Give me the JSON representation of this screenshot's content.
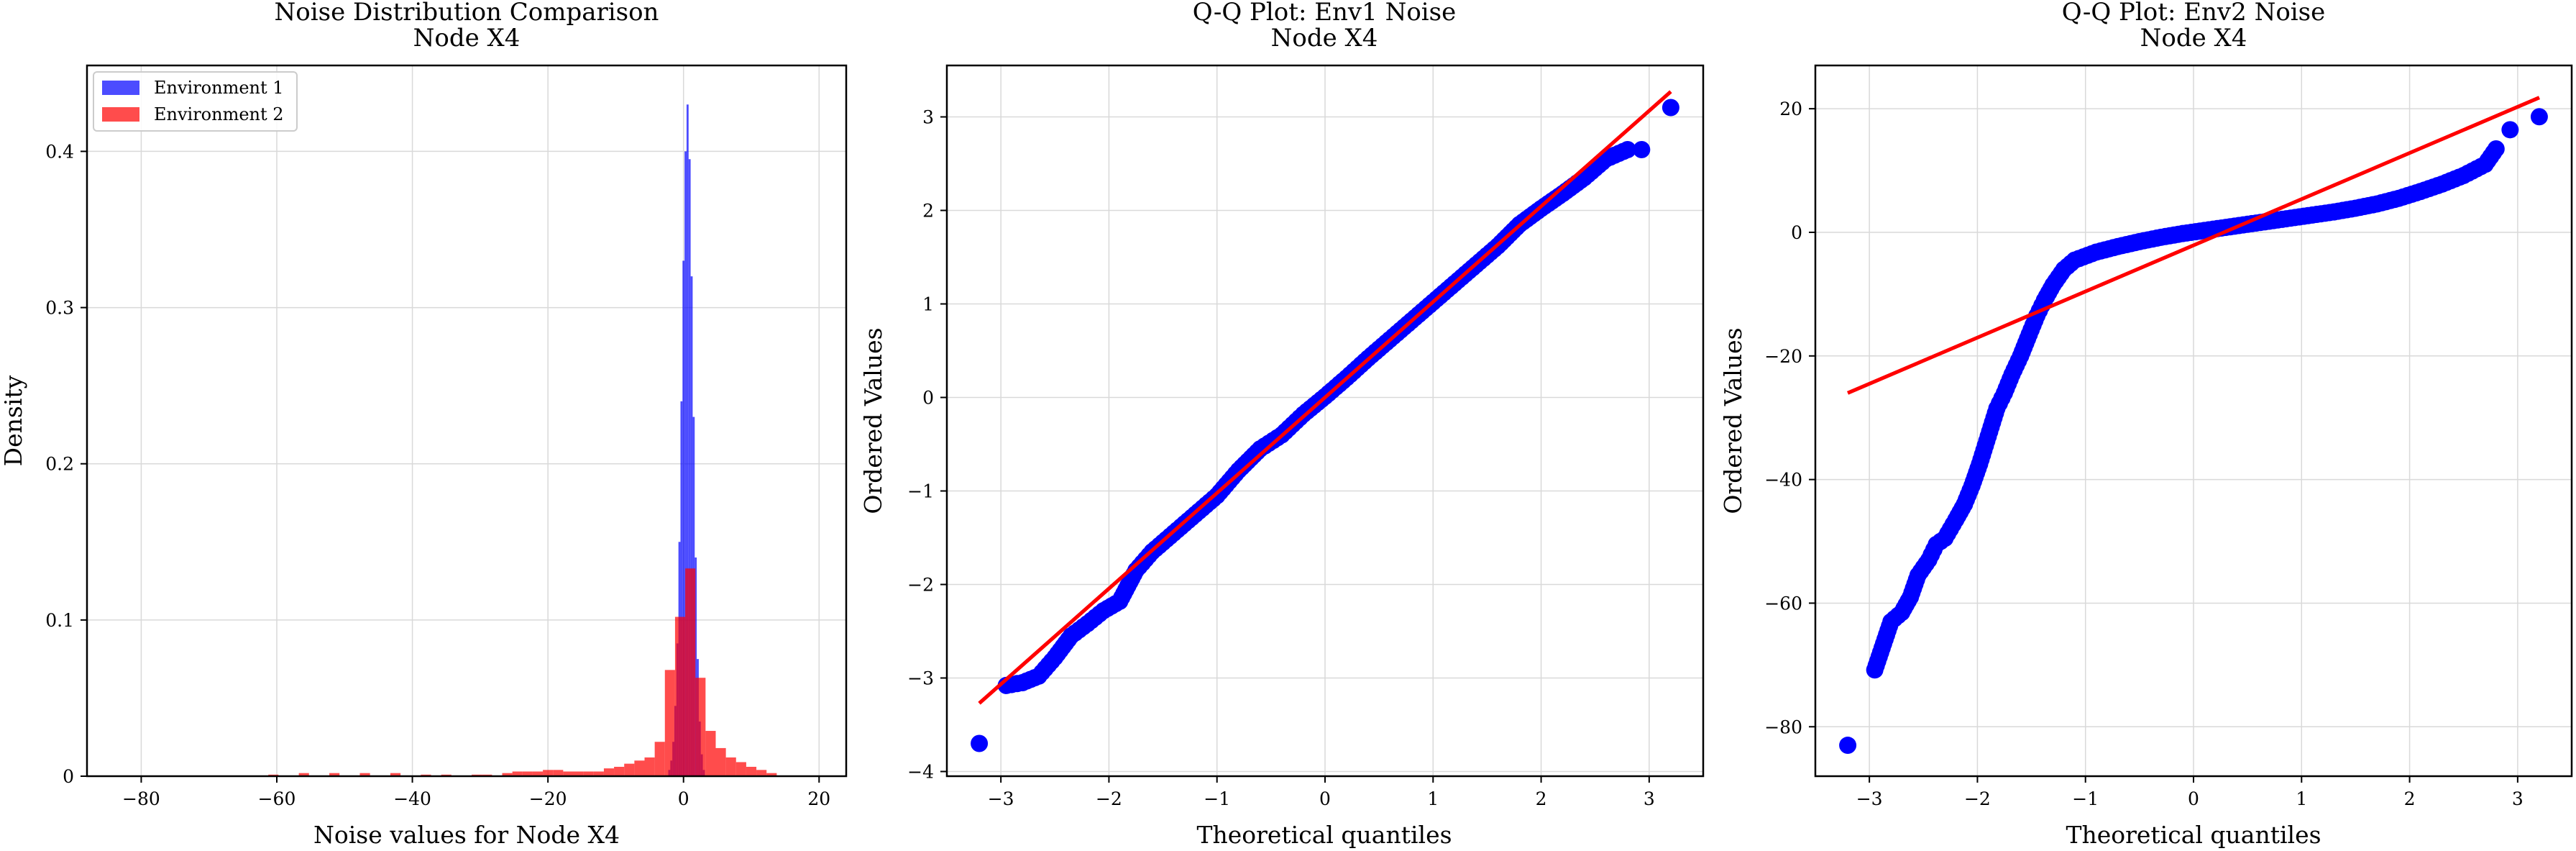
{
  "chart_data": [
    {
      "type": "bar",
      "title": "Noise Distribution Comparison",
      "subtitle": "Node X4",
      "xlabel": "Noise values for Node X4",
      "ylabel": "Density",
      "xlim": [
        -88,
        24
      ],
      "ylim": [
        0,
        0.455
      ],
      "xticks": [
        -80,
        -60,
        -40,
        -20,
        0,
        20
      ],
      "yticks": [
        0.0,
        0.1,
        0.2,
        0.3,
        0.4
      ],
      "grid": true,
      "legend_position": "top-left",
      "series": [
        {
          "name": "Environment 1",
          "color": "#0000ff",
          "bin_width": 0.3,
          "bins": [
            {
              "x": -2.1,
              "y": 0.004
            },
            {
              "x": -1.8,
              "y": 0.01
            },
            {
              "x": -1.5,
              "y": 0.022
            },
            {
              "x": -1.2,
              "y": 0.045
            },
            {
              "x": -0.9,
              "y": 0.085
            },
            {
              "x": -0.6,
              "y": 0.15
            },
            {
              "x": -0.3,
              "y": 0.24
            },
            {
              "x": 0.0,
              "y": 0.33
            },
            {
              "x": 0.3,
              "y": 0.4
            },
            {
              "x": 0.6,
              "y": 0.43
            },
            {
              "x": 0.9,
              "y": 0.395
            },
            {
              "x": 1.2,
              "y": 0.32
            },
            {
              "x": 1.5,
              "y": 0.23
            },
            {
              "x": 1.8,
              "y": 0.14
            },
            {
              "x": 2.1,
              "y": 0.075
            },
            {
              "x": 2.4,
              "y": 0.035
            },
            {
              "x": 2.7,
              "y": 0.014
            },
            {
              "x": 3.0,
              "y": 0.004
            }
          ]
        },
        {
          "name": "Environment 2",
          "color": "#ff0000",
          "bin_width": 1.5,
          "bins": [
            {
              "x": -60.5,
              "y": 0.001
            },
            {
              "x": -56.0,
              "y": 0.002
            },
            {
              "x": -51.5,
              "y": 0.002
            },
            {
              "x": -47.0,
              "y": 0.002
            },
            {
              "x": -42.5,
              "y": 0.002
            },
            {
              "x": -38.0,
              "y": 0.001
            },
            {
              "x": -35.0,
              "y": 0.001
            },
            {
              "x": -30.5,
              "y": 0.001
            },
            {
              "x": -29.0,
              "y": 0.001
            },
            {
              "x": -26.0,
              "y": 0.002
            },
            {
              "x": -24.5,
              "y": 0.003
            },
            {
              "x": -23.0,
              "y": 0.003
            },
            {
              "x": -21.5,
              "y": 0.003
            },
            {
              "x": -20.0,
              "y": 0.004
            },
            {
              "x": -18.5,
              "y": 0.004
            },
            {
              "x": -17.0,
              "y": 0.003
            },
            {
              "x": -15.5,
              "y": 0.003
            },
            {
              "x": -14.0,
              "y": 0.003
            },
            {
              "x": -12.5,
              "y": 0.003
            },
            {
              "x": -11.0,
              "y": 0.005
            },
            {
              "x": -9.5,
              "y": 0.006
            },
            {
              "x": -8.0,
              "y": 0.008
            },
            {
              "x": -6.5,
              "y": 0.01
            },
            {
              "x": -5.0,
              "y": 0.012
            },
            {
              "x": -3.5,
              "y": 0.022
            },
            {
              "x": -2.0,
              "y": 0.068
            },
            {
              "x": -0.5,
              "y": 0.102
            },
            {
              "x": 1.0,
              "y": 0.133
            },
            {
              "x": 2.5,
              "y": 0.063
            },
            {
              "x": 4.0,
              "y": 0.029
            },
            {
              "x": 5.5,
              "y": 0.018
            },
            {
              "x": 7.0,
              "y": 0.012
            },
            {
              "x": 8.5,
              "y": 0.009
            },
            {
              "x": 10.0,
              "y": 0.006
            },
            {
              "x": 11.5,
              "y": 0.004
            },
            {
              "x": 13.0,
              "y": 0.002
            }
          ]
        }
      ]
    },
    {
      "type": "scatter",
      "title": "Q-Q Plot: Env1 Noise",
      "subtitle": "Node X4",
      "xlabel": "Theoretical quantiles",
      "ylabel": "Ordered Values",
      "xlim": [
        -3.5,
        3.5
      ],
      "ylim": [
        -4.05,
        3.55
      ],
      "xticks": [
        -3,
        -2,
        -1,
        0,
        1,
        2,
        3
      ],
      "yticks": [
        -4,
        -3,
        -2,
        -1,
        0,
        1,
        2,
        3
      ],
      "grid": true,
      "fit_line": {
        "color": "#ff0000",
        "x": [
          -3.2,
          3.2
        ],
        "y": [
          -3.27,
          3.27
        ]
      },
      "points_color": "#0000ff",
      "points_sample": [
        {
          "x": -3.2,
          "y": -3.7
        },
        {
          "x": -2.95,
          "y": -3.08
        },
        {
          "x": -2.8,
          "y": -3.05
        },
        {
          "x": -2.65,
          "y": -2.98
        },
        {
          "x": -2.5,
          "y": -2.78
        },
        {
          "x": -2.35,
          "y": -2.55
        },
        {
          "x": -2.2,
          "y": -2.42
        },
        {
          "x": -2.05,
          "y": -2.28
        },
        {
          "x": -1.9,
          "y": -2.18
        },
        {
          "x": -1.75,
          "y": -1.85
        },
        {
          "x": -1.6,
          "y": -1.65
        },
        {
          "x": -1.4,
          "y": -1.45
        },
        {
          "x": -1.2,
          "y": -1.25
        },
        {
          "x": -1.0,
          "y": -1.05
        },
        {
          "x": -0.8,
          "y": -0.78
        },
        {
          "x": -0.6,
          "y": -0.55
        },
        {
          "x": -0.4,
          "y": -0.4
        },
        {
          "x": -0.2,
          "y": -0.18
        },
        {
          "x": 0.0,
          "y": 0.01
        },
        {
          "x": 0.2,
          "y": 0.21
        },
        {
          "x": 0.4,
          "y": 0.42
        },
        {
          "x": 0.6,
          "y": 0.62
        },
        {
          "x": 0.8,
          "y": 0.82
        },
        {
          "x": 1.0,
          "y": 1.02
        },
        {
          "x": 1.2,
          "y": 1.22
        },
        {
          "x": 1.4,
          "y": 1.42
        },
        {
          "x": 1.6,
          "y": 1.62
        },
        {
          "x": 1.8,
          "y": 1.85
        },
        {
          "x": 2.0,
          "y": 2.02
        },
        {
          "x": 2.2,
          "y": 2.18
        },
        {
          "x": 2.4,
          "y": 2.35
        },
        {
          "x": 2.6,
          "y": 2.55
        },
        {
          "x": 2.8,
          "y": 2.65
        },
        {
          "x": 2.93,
          "y": 2.65
        },
        {
          "x": 3.2,
          "y": 3.1
        }
      ]
    },
    {
      "type": "scatter",
      "title": "Q-Q Plot: Env2 Noise",
      "subtitle": "Node X4",
      "xlabel": "Theoretical quantiles",
      "ylabel": "Ordered Values",
      "xlim": [
        -3.5,
        3.5
      ],
      "ylim": [
        -88,
        27
      ],
      "xticks": [
        -3,
        -2,
        -1,
        0,
        1,
        2,
        3
      ],
      "yticks": [
        -80,
        -60,
        -40,
        -20,
        0,
        20
      ],
      "grid": true,
      "fit_line": {
        "color": "#ff0000",
        "x": [
          -3.2,
          3.2
        ],
        "y": [
          -26.0,
          21.8
        ]
      },
      "points_color": "#0000ff",
      "points_sample": [
        {
          "x": -3.2,
          "y": -83.0
        },
        {
          "x": -2.95,
          "y": -70.8
        },
        {
          "x": -2.8,
          "y": -63.0
        },
        {
          "x": -2.7,
          "y": -61.5
        },
        {
          "x": -2.62,
          "y": -59.0
        },
        {
          "x": -2.55,
          "y": -55.5
        },
        {
          "x": -2.45,
          "y": -53.0
        },
        {
          "x": -2.38,
          "y": -50.5
        },
        {
          "x": -2.3,
          "y": -49.5
        },
        {
          "x": -2.2,
          "y": -46.5
        },
        {
          "x": -2.12,
          "y": -44.0
        },
        {
          "x": -2.05,
          "y": -41.0
        },
        {
          "x": -1.98,
          "y": -37.5
        },
        {
          "x": -1.9,
          "y": -33.0
        },
        {
          "x": -1.82,
          "y": -28.5
        },
        {
          "x": -1.75,
          "y": -26.0
        },
        {
          "x": -1.68,
          "y": -23.0
        },
        {
          "x": -1.6,
          "y": -20.0
        },
        {
          "x": -1.52,
          "y": -16.5
        },
        {
          "x": -1.45,
          "y": -13.5
        },
        {
          "x": -1.38,
          "y": -11.0
        },
        {
          "x": -1.3,
          "y": -8.5
        },
        {
          "x": -1.2,
          "y": -6.0
        },
        {
          "x": -1.1,
          "y": -4.5
        },
        {
          "x": -0.9,
          "y": -3.2
        },
        {
          "x": -0.7,
          "y": -2.3
        },
        {
          "x": -0.5,
          "y": -1.5
        },
        {
          "x": -0.3,
          "y": -0.8
        },
        {
          "x": -0.1,
          "y": -0.2
        },
        {
          "x": 0.1,
          "y": 0.3
        },
        {
          "x": 0.3,
          "y": 0.8
        },
        {
          "x": 0.5,
          "y": 1.3
        },
        {
          "x": 0.7,
          "y": 1.8
        },
        {
          "x": 0.9,
          "y": 2.3
        },
        {
          "x": 1.1,
          "y": 2.8
        },
        {
          "x": 1.3,
          "y": 3.3
        },
        {
          "x": 1.5,
          "y": 3.9
        },
        {
          "x": 1.7,
          "y": 4.6
        },
        {
          "x": 1.9,
          "y": 5.5
        },
        {
          "x": 2.1,
          "y": 6.6
        },
        {
          "x": 2.3,
          "y": 7.8
        },
        {
          "x": 2.5,
          "y": 9.2
        },
        {
          "x": 2.7,
          "y": 11.0
        },
        {
          "x": 2.8,
          "y": 13.5
        },
        {
          "x": 2.93,
          "y": 16.6
        },
        {
          "x": 3.2,
          "y": 18.7
        }
      ]
    }
  ]
}
